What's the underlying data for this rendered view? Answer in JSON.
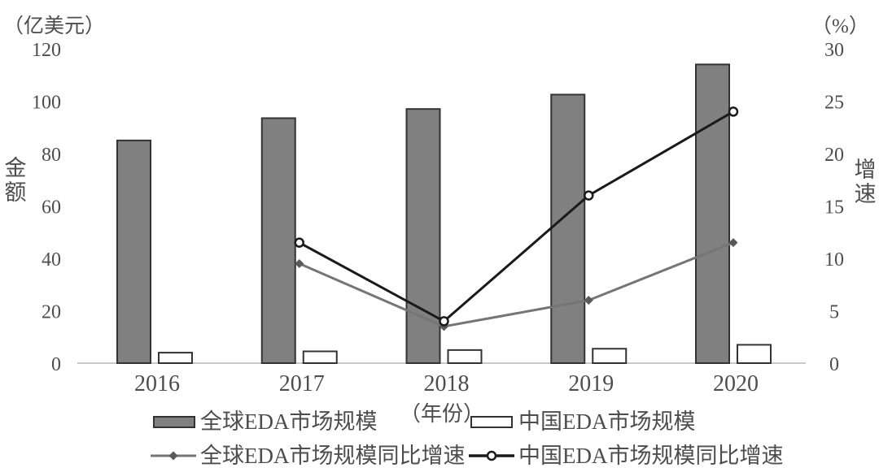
{
  "chart_data": {
    "type": "combo",
    "title": "",
    "categories": [
      "2016",
      "2017",
      "2018",
      "2019",
      "2020"
    ],
    "series": [
      {
        "name": "全球EDA市场规模",
        "type": "bar",
        "axis": "left",
        "style": "gray-filled",
        "values": [
          85,
          93.5,
          97,
          102.5,
          114
        ]
      },
      {
        "name": "中国EDA市场规模",
        "type": "bar",
        "axis": "left",
        "style": "white-outlined",
        "values": [
          4,
          4.5,
          5,
          5.5,
          7
        ]
      },
      {
        "name": "全球EDA市场规模同比增速",
        "type": "line",
        "axis": "right",
        "marker": "diamond",
        "style": "gray",
        "values": [
          null,
          9.5,
          3.5,
          6,
          11.5
        ]
      },
      {
        "name": "中国EDA市场规模同比增速",
        "type": "line",
        "axis": "right",
        "marker": "circle-open",
        "style": "black",
        "values": [
          null,
          11.5,
          4,
          16,
          24
        ]
      }
    ],
    "left_axis": {
      "title": "金额",
      "unit": "（亿美元）",
      "min": 0,
      "max": 120,
      "step": 20,
      "ticks": [
        0,
        20,
        40,
        60,
        80,
        100,
        120
      ]
    },
    "right_axis": {
      "title": "增速",
      "unit": "（%）",
      "min": 0,
      "max": 30,
      "step": 5,
      "ticks": [
        0,
        5,
        10,
        15,
        20,
        25,
        30
      ]
    },
    "x_axis": {
      "unit": "（年份）"
    },
    "grid": false,
    "legend_position": "bottom"
  },
  "colors": {
    "bar_fill": "#808080",
    "bar_stroke": "#333333",
    "china_bar_fill": "#ffffff",
    "line_gray": "#757575",
    "line_black": "#1a1a1a",
    "marker_fill": "#595959",
    "text": "#4d4d4d",
    "axis_line": "#c8c8c8",
    "background": "#ffffff"
  }
}
